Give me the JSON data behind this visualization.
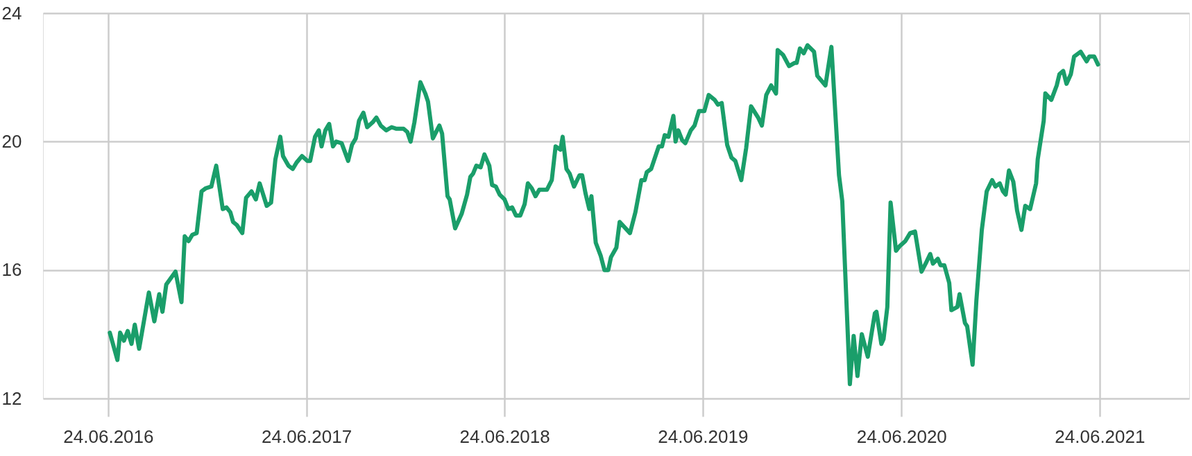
{
  "chart_data": {
    "type": "line",
    "xlim": [
      "2016-02-25",
      "2021-12-06"
    ],
    "ylim": [
      12,
      24
    ],
    "yticks": [
      12,
      16,
      20,
      24
    ],
    "xticks": [
      {
        "value": "2016-06-24",
        "label": "24.06.2016"
      },
      {
        "value": "2017-06-24",
        "label": "24.06.2017"
      },
      {
        "value": "2018-06-24",
        "label": "24.06.2018"
      },
      {
        "value": "2019-06-24",
        "label": "24.06.2019"
      },
      {
        "value": "2020-06-24",
        "label": "24.06.2020"
      },
      {
        "value": "2021-06-24",
        "label": "24.06.2021"
      }
    ],
    "grid": true,
    "marker": "none",
    "line_style": "solid",
    "x": [
      "2016-06-27",
      "2016-07-11",
      "2016-07-16",
      "2016-07-23",
      "2016-07-30",
      "2016-08-06",
      "2016-08-12",
      "2016-08-20",
      "2016-09-07",
      "2016-09-17",
      "2016-09-26",
      "2016-10-02",
      "2016-10-09",
      "2016-10-26",
      "2016-11-06",
      "2016-11-12",
      "2016-11-19",
      "2016-11-26",
      "2016-12-04",
      "2016-12-13",
      "2016-12-21",
      "2016-12-31",
      "2017-01-09",
      "2017-01-21",
      "2017-01-28",
      "2017-02-04",
      "2017-02-09",
      "2017-02-16",
      "2017-02-26",
      "2017-03-05",
      "2017-03-15",
      "2017-03-23",
      "2017-03-30",
      "2017-04-12",
      "2017-04-20",
      "2017-04-28",
      "2017-05-07",
      "2017-05-12",
      "2017-05-22",
      "2017-05-30",
      "2017-06-06",
      "2017-06-16",
      "2017-06-26",
      "2017-07-01",
      "2017-07-10",
      "2017-07-17",
      "2017-07-22",
      "2017-07-29",
      "2017-08-05",
      "2017-08-12",
      "2017-08-18",
      "2017-08-28",
      "2017-09-09",
      "2017-09-16",
      "2017-09-23",
      "2017-09-29",
      "2017-10-07",
      "2017-10-14",
      "2017-10-24",
      "2017-10-31",
      "2017-11-08",
      "2017-11-18",
      "2017-11-28",
      "2017-12-07",
      "2017-12-20",
      "2017-12-27",
      "2018-01-02",
      "2018-01-09",
      "2018-01-20",
      "2018-01-29",
      "2018-02-03",
      "2018-02-12",
      "2018-02-24",
      "2018-03-01",
      "2018-03-11",
      "2018-03-15",
      "2018-03-25",
      "2018-04-06",
      "2018-04-16",
      "2018-04-22",
      "2018-04-27",
      "2018-05-03",
      "2018-05-11",
      "2018-05-18",
      "2018-05-27",
      "2018-06-01",
      "2018-06-08",
      "2018-06-15",
      "2018-06-24",
      "2018-07-01",
      "2018-07-08",
      "2018-07-15",
      "2018-07-23",
      "2018-07-31",
      "2018-08-06",
      "2018-08-13",
      "2018-08-20",
      "2018-08-27",
      "2018-09-10",
      "2018-09-19",
      "2018-09-26",
      "2018-10-05",
      "2018-10-09",
      "2018-10-16",
      "2018-10-22",
      "2018-10-30",
      "2018-11-09",
      "2018-11-14",
      "2018-11-20",
      "2018-11-27",
      "2018-12-01",
      "2018-12-09",
      "2018-12-18",
      "2018-12-25",
      "2019-01-01",
      "2019-01-06",
      "2019-01-16",
      "2019-01-22",
      "2019-02-10",
      "2019-02-20",
      "2019-03-03",
      "2019-03-09",
      "2019-03-13",
      "2019-03-21",
      "2019-04-04",
      "2019-04-10",
      "2019-04-15",
      "2019-04-22",
      "2019-05-01",
      "2019-05-05",
      "2019-05-10",
      "2019-05-17",
      "2019-05-23",
      "2019-06-02",
      "2019-06-09",
      "2019-06-17",
      "2019-06-27",
      "2019-07-05",
      "2019-07-16",
      "2019-07-22",
      "2019-07-29",
      "2019-08-08",
      "2019-08-16",
      "2019-08-23",
      "2019-09-03",
      "2019-09-12",
      "2019-09-21",
      "2019-10-04",
      "2019-10-11",
      "2019-10-19",
      "2019-10-28",
      "2019-11-06",
      "2019-11-09",
      "2019-11-19",
      "2019-11-30",
      "2019-12-10",
      "2019-12-14",
      "2019-12-20",
      "2019-12-27",
      "2020-01-03",
      "2020-01-15",
      "2020-01-21",
      "2020-02-05",
      "2020-02-16",
      "2020-03-01",
      "2020-03-07",
      "2020-03-21",
      "2020-03-28",
      "2020-04-04",
      "2020-04-12",
      "2020-04-23",
      "2020-05-06",
      "2020-05-09",
      "2020-05-18",
      "2020-05-22",
      "2020-05-29",
      "2020-06-04",
      "2020-06-14",
      "2020-06-21",
      "2020-07-01",
      "2020-07-10",
      "2020-07-19",
      "2020-07-31",
      "2020-08-09",
      "2020-08-16",
      "2020-08-21",
      "2020-08-30",
      "2020-09-04",
      "2020-09-11",
      "2020-09-20",
      "2020-09-24",
      "2020-10-05",
      "2020-10-09",
      "2020-10-19",
      "2020-10-23",
      "2020-11-02",
      "2020-11-09",
      "2020-11-19",
      "2020-11-28",
      "2020-12-08",
      "2020-12-14",
      "2020-12-22",
      "2020-12-28",
      "2021-01-02",
      "2021-01-08",
      "2021-01-16",
      "2021-01-23",
      "2021-01-31",
      "2021-02-07",
      "2021-02-16",
      "2021-02-27",
      "2021-03-02",
      "2021-03-13",
      "2021-03-16",
      "2021-03-27",
      "2021-04-06",
      "2021-04-11",
      "2021-04-18",
      "2021-04-24",
      "2021-05-02",
      "2021-05-08",
      "2021-05-20",
      "2021-05-31",
      "2021-06-05",
      "2021-06-14",
      "2021-06-21"
    ],
    "series": [
      {
        "color": "#1a9e6a",
        "values": [
          14.05,
          13.2,
          14.05,
          13.8,
          14.1,
          13.7,
          14.3,
          13.55,
          15.3,
          14.4,
          15.25,
          14.7,
          15.55,
          15.95,
          15.0,
          17.05,
          16.9,
          17.1,
          17.15,
          18.45,
          18.55,
          18.6,
          19.25,
          17.9,
          17.95,
          17.8,
          17.5,
          17.4,
          17.15,
          18.25,
          18.45,
          18.2,
          18.7,
          18.0,
          18.1,
          19.45,
          20.15,
          19.55,
          19.25,
          19.15,
          19.35,
          19.55,
          19.4,
          19.4,
          20.15,
          20.35,
          19.85,
          20.35,
          20.55,
          19.85,
          20.0,
          19.95,
          19.4,
          19.9,
          20.1,
          20.65,
          20.9,
          20.45,
          20.6,
          20.75,
          20.5,
          20.35,
          20.45,
          20.4,
          20.4,
          20.3,
          20.0,
          20.6,
          21.85,
          21.5,
          21.25,
          20.1,
          20.5,
          20.25,
          18.3,
          18.2,
          17.3,
          17.75,
          18.35,
          18.9,
          19.0,
          19.25,
          19.2,
          19.6,
          19.25,
          18.65,
          18.6,
          18.35,
          18.2,
          17.9,
          17.95,
          17.7,
          17.7,
          18.05,
          18.7,
          18.55,
          18.3,
          18.5,
          18.5,
          18.8,
          19.85,
          19.75,
          20.15,
          19.15,
          19.0,
          18.6,
          18.95,
          18.95,
          18.4,
          17.9,
          18.3,
          16.85,
          16.45,
          16.0,
          16.0,
          16.4,
          16.7,
          17.5,
          17.15,
          17.8,
          18.8,
          18.8,
          19.05,
          19.15,
          19.85,
          19.85,
          20.2,
          20.15,
          20.8,
          20.0,
          20.35,
          20.05,
          19.95,
          20.35,
          20.5,
          20.95,
          20.95,
          21.45,
          21.3,
          21.15,
          21.2,
          19.9,
          19.5,
          19.4,
          18.8,
          19.8,
          21.1,
          20.75,
          20.5,
          21.45,
          21.75,
          21.5,
          22.85,
          22.7,
          22.35,
          22.45,
          22.45,
          22.9,
          22.75,
          23.0,
          22.8,
          22.05,
          21.75,
          22.95,
          18.95,
          18.15,
          12.45,
          13.95,
          12.7,
          14.0,
          13.3,
          14.65,
          14.7,
          13.7,
          13.85,
          14.85,
          18.1,
          16.6,
          16.75,
          16.9,
          17.15,
          17.2,
          15.95,
          16.25,
          16.5,
          16.2,
          16.35,
          16.15,
          16.15,
          15.6,
          14.75,
          14.85,
          15.25,
          14.35,
          14.25,
          13.05,
          15.05,
          17.25,
          18.45,
          18.8,
          18.6,
          18.7,
          18.45,
          18.35,
          19.1,
          18.75,
          17.85,
          17.25,
          18.0,
          17.9,
          18.7,
          19.45,
          20.65,
          21.5,
          21.3,
          21.75,
          22.1,
          22.2,
          21.8,
          22.1,
          22.65,
          22.8,
          22.5,
          22.65,
          22.65,
          22.4
        ]
      }
    ]
  }
}
